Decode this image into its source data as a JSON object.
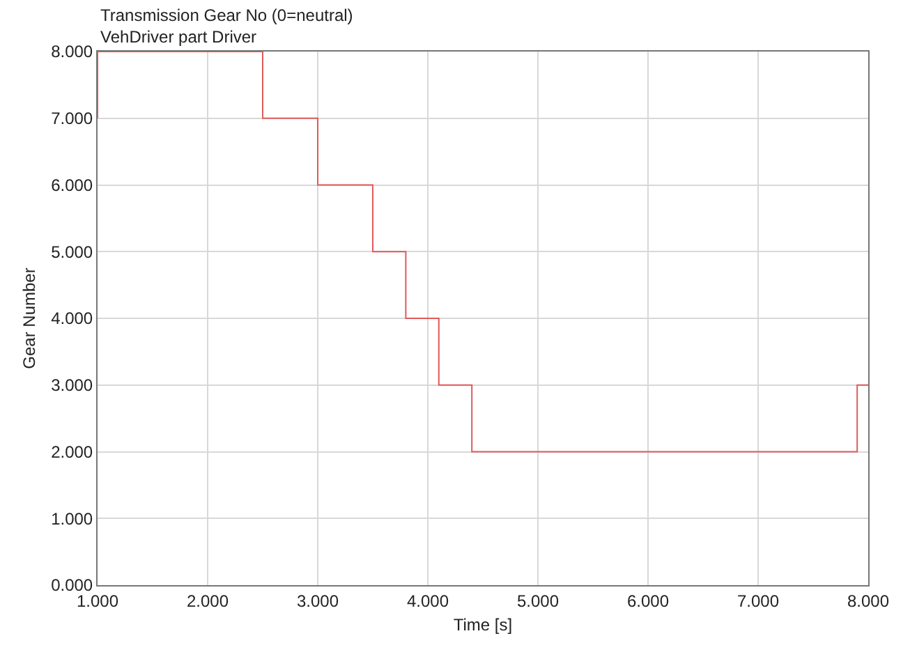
{
  "chart_data": {
    "type": "step",
    "title": "Transmission Gear No (0=neutral)",
    "subtitle": "VehDriver part Driver",
    "xlabel": "Time [s]",
    "ylabel": "Gear Number",
    "x": [
      1,
      1,
      2.5,
      3,
      3.5,
      3.8,
      4.1,
      4.4,
      7.9,
      8
    ],
    "series": [
      {
        "color": "#e05a5a",
        "values": [
          7,
          8,
          7,
          6,
          5,
          4,
          3,
          2,
          3,
          3
        ]
      }
    ],
    "xlim": [
      1,
      8
    ],
    "xticks": [
      {
        "value": 1,
        "label": "1.000"
      },
      {
        "value": 2,
        "label": "2.000"
      },
      {
        "value": 3,
        "label": "3.000"
      },
      {
        "value": 4,
        "label": "4.000"
      },
      {
        "value": 5,
        "label": "5.000"
      },
      {
        "value": 6,
        "label": "6.000"
      },
      {
        "value": 7,
        "label": "7.000"
      },
      {
        "value": 8,
        "label": "8.000"
      }
    ],
    "ylim": [
      0,
      8
    ],
    "yticks": [
      {
        "value": 0,
        "label": "0.000"
      },
      {
        "value": 1,
        "label": "1.000"
      },
      {
        "value": 2,
        "label": "2.000"
      },
      {
        "value": 3,
        "label": "3.000"
      },
      {
        "value": 4,
        "label": "4.000"
      },
      {
        "value": 5,
        "label": "5.000"
      },
      {
        "value": 6,
        "label": "6.000"
      },
      {
        "value": 7,
        "label": "7.000"
      },
      {
        "value": 8,
        "label": "8.000"
      }
    ],
    "grid": true
  }
}
